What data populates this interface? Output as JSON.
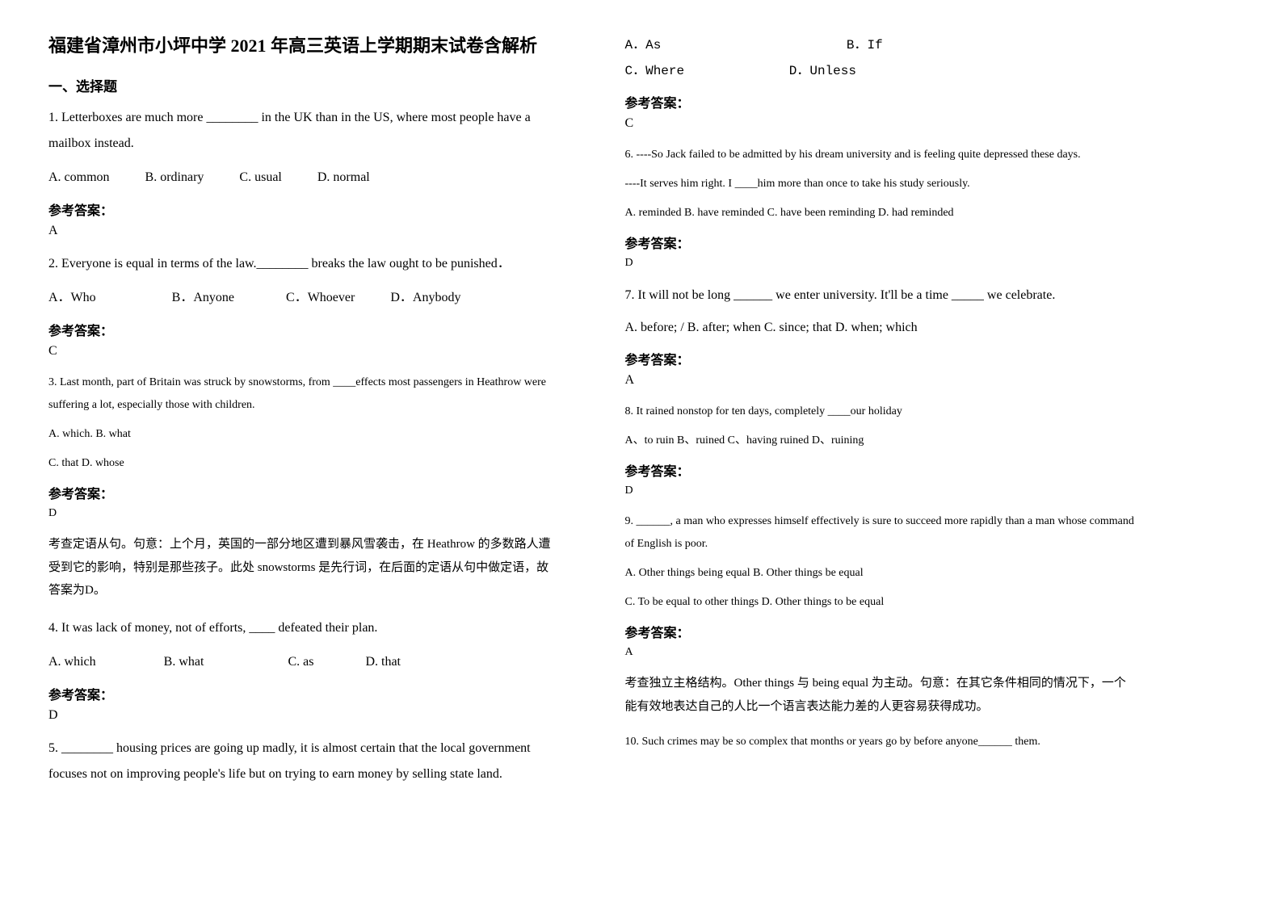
{
  "title": "福建省漳州市小坪中学 2021 年高三英语上学期期末试卷含解析",
  "section1": "一、选择题",
  "answer_label": "参考答案：",
  "q1": {
    "text": "1. Letterboxes are much more ________ in the UK than in the US, where most people have a mailbox instead.",
    "optA": "A. common",
    "optB": "B. ordinary",
    "optC": "C. usual",
    "optD": "D. normal",
    "answer": "A"
  },
  "q2": {
    "text": "2. Everyone is equal in terms of the law.________ breaks the law ought to be punished．",
    "optA": "A．Who",
    "optB": "B．Anyone",
    "optC": "C．Whoever",
    "optD": "D．Anybody",
    "answer": "C"
  },
  "q3": {
    "text": "3. Last month, part of Britain was struck by snowstorms, from ____effects most passengers in Heathrow were suffering a lot, especially those with children.",
    "opts1": "A. which.   B. what",
    "opts2": "C. that   D. whose",
    "answer": "D",
    "explain": "考查定语从句。句意：上个月，英国的一部分地区遭到暴风雪袭击，在 Heathrow 的多数路人遭受到它的影响，特别是那些孩子。此处 snowstorms 是先行词，在后面的定语从句中做定语，故答案为D。"
  },
  "q4": {
    "text": "4. It was lack of money, not of efforts, ____ defeated their plan.",
    "optA": "A. which",
    "optB": "B. what",
    "optC": "C. as",
    "optD": "D. that",
    "answer": "D"
  },
  "q5": {
    "text": "5. ________ housing prices are going up madly, it is almost certain that the local government focuses not on improving people's life but on trying to earn money by selling state land.",
    "optA": "A．As",
    "optB": "B．If",
    "optC": "C．Where",
    "optD": "D．Unless",
    "answer": "C"
  },
  "q6": {
    "text": "6. ----So Jack failed to be admitted by his dream university and is feeling quite depressed these days.",
    "text2": "----It serves him right. I ____him more than once to take his study seriously.",
    "opts": "A. reminded     B. have reminded     C. have been reminding   D. had reminded",
    "answer": "D"
  },
  "q7": {
    "text": "7. It will not be long ______ we enter university. It'll be a time _____ we celebrate.",
    "opts": "A. before; /   B. after; when   C. since; that   D. when; which",
    "answer": "A"
  },
  "q8": {
    "text": "8. It rained nonstop for ten days, completely ____our holiday",
    "opts": "A、to ruin    B、ruined    C、having ruined   D、ruining",
    "answer": "D"
  },
  "q9": {
    "text": "9. ______, a man who expresses himself effectively is sure to succeed more rapidly than a man whose command of English is poor.",
    "opts1": "A. Other things being equal     B. Other things be equal",
    "opts2": "C. To be equal to other things    D. Other things to be equal",
    "answer": "A",
    "explain": "考查独立主格结构。Other things 与 being equal 为主动。句意：在其它条件相同的情况下，一个能有效地表达自己的人比一个语言表达能力差的人更容易获得成功。"
  },
  "q10": {
    "text": "10. Such crimes may be so complex that months or years go by before anyone______ them."
  }
}
